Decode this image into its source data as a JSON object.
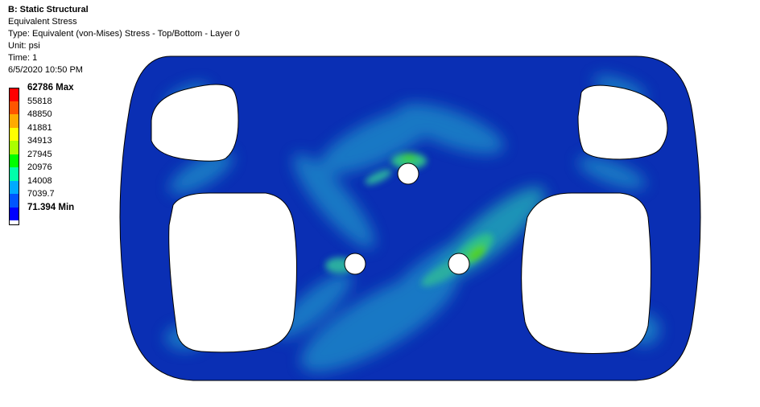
{
  "header": {
    "title": "B: Static Structural",
    "result_name": "Equivalent Stress",
    "type_line": "Type: Equivalent (von-Mises) Stress - Top/Bottom - Layer 0",
    "unit_line": "Unit: psi",
    "time_line": "Time: 1",
    "timestamp": "6/5/2020 10:50 PM"
  },
  "legend": {
    "entries": [
      {
        "label": "62786 Max",
        "color": "#ff0000",
        "bold": true
      },
      {
        "label": "55818",
        "color": "#ff5500",
        "bold": false
      },
      {
        "label": "48850",
        "color": "#ffaa00",
        "bold": false
      },
      {
        "label": "41881",
        "color": "#ffff00",
        "bold": false
      },
      {
        "label": "34913",
        "color": "#aaff00",
        "bold": false
      },
      {
        "label": "27945",
        "color": "#00ff00",
        "bold": false
      },
      {
        "label": "20976",
        "color": "#00ffaa",
        "bold": false
      },
      {
        "label": "14008",
        "color": "#00aaff",
        "bold": false
      },
      {
        "label": "7039.7",
        "color": "#0055ff",
        "bold": false
      },
      {
        "label": "71.394 Min",
        "color": "#0000ff",
        "bold": true
      }
    ],
    "extra_swatch_color": "#ffffff"
  },
  "colors": {
    "part_base": "#0a2fb4",
    "stress_mid": "#1f9acb",
    "stress_high": "#2cc08a",
    "stress_peak": "#4ccc2a",
    "outline": "#000000",
    "background": "#ffffff"
  }
}
